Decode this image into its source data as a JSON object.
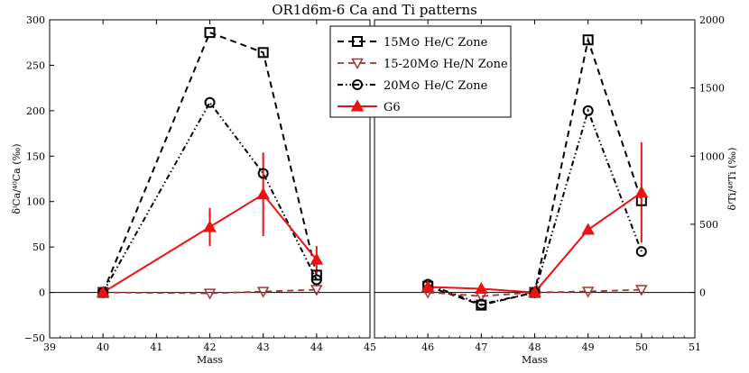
{
  "chart_data": {
    "type": "line",
    "title": "OR1d6m-6 Ca and Ti patterns",
    "legend": {
      "position": "top-center",
      "entries": [
        {
          "series": "15M",
          "label": "15M⊙ He/C Zone"
        },
        {
          "series": "1520",
          "label": "15-20M⊙ He/N Zone"
        },
        {
          "series": "20M",
          "label": "20M⊙ He/C Zone"
        },
        {
          "series": "G6",
          "label": "G6"
        }
      ]
    },
    "left_panel": {
      "xlabel": "Mass",
      "ylabel": "δⁱCa/⁴⁰Ca (‰)",
      "xlim": [
        39,
        45
      ],
      "ylim": [
        -50,
        300
      ],
      "xticks": [
        "39",
        "40",
        "41",
        "42",
        "43",
        "44",
        "45"
      ],
      "yticks": [
        "−50",
        "0",
        "50",
        "100",
        "150",
        "200",
        "250",
        "300"
      ],
      "series": [
        {
          "id": "15M",
          "name": "15M⊙ He/C Zone",
          "x": [
            40,
            42,
            43,
            44
          ],
          "y": [
            0,
            286,
            264,
            19
          ]
        },
        {
          "id": "1520",
          "name": "15-20M⊙ He/N Zone",
          "x": [
            40,
            42,
            43,
            44
          ],
          "y": [
            0,
            -1,
            1,
            3
          ]
        },
        {
          "id": "20M",
          "name": "20M⊙ He/C Zone",
          "x": [
            40,
            42,
            43,
            44
          ],
          "y": [
            0,
            209,
            131,
            14
          ]
        },
        {
          "id": "G6",
          "name": "G6",
          "x": [
            40,
            42,
            43,
            44
          ],
          "y": [
            0,
            72,
            108,
            36
          ],
          "err": [
            0,
            21,
            46,
            15
          ]
        }
      ]
    },
    "right_panel": {
      "xlabel": "Mass",
      "ylabel": "δⁱTi/⁴⁸Ti (‰)",
      "xlim": [
        45,
        51
      ],
      "ylim": [
        -333.3,
        2000
      ],
      "xticks": [
        "46",
        "47",
        "48",
        "49",
        "50",
        "51"
      ],
      "yticks": [
        "0",
        "500",
        "1000",
        "1500",
        "2000"
      ],
      "series": [
        {
          "id": "15M",
          "name": "15M⊙ He/C Zone",
          "x": [
            46,
            47,
            48,
            49,
            50
          ],
          "y": [
            45,
            -93,
            0,
            1853,
            673
          ]
        },
        {
          "id": "1520",
          "name": "15-20M⊙ He/N Zone",
          "x": [
            46,
            47,
            48,
            49,
            50
          ],
          "y": [
            0,
            -27,
            0,
            7,
            20
          ]
        },
        {
          "id": "20M",
          "name": "20M⊙ He/C Zone",
          "x": [
            46,
            47,
            48,
            49,
            50
          ],
          "y": [
            60,
            -87,
            0,
            1333,
            300
          ]
        },
        {
          "id": "G6",
          "name": "G6",
          "x": [
            46,
            47,
            48,
            49,
            50
          ],
          "y": [
            40,
            27,
            0,
            460,
            733
          ],
          "err": [
            0,
            0,
            0,
            0,
            367
          ]
        }
      ]
    }
  }
}
